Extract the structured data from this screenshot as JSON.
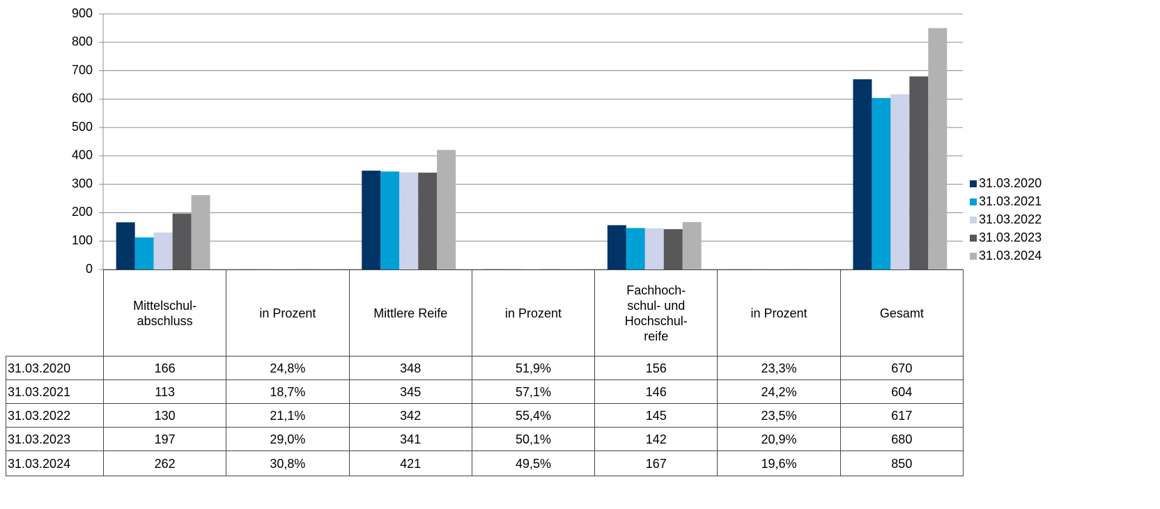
{
  "chart_data": {
    "type": "bar",
    "categories": [
      "Mittelschul-\nabschluss",
      "in Prozent",
      "Mittlere Reife",
      "in Prozent",
      "Fachhoch-\nschul- und\nHochschul-\nreife",
      "in Prozent",
      "Gesamt"
    ],
    "series": [
      {
        "name": "31.03.2020",
        "color": "#003366",
        "values": [
          166,
          0.248,
          348,
          0.519,
          156,
          0.233,
          670
        ],
        "value_labels": [
          null,
          "24,8%",
          null,
          "51,9%",
          null,
          "23,3%",
          null
        ]
      },
      {
        "name": "31.03.2021",
        "color": "#009fd6",
        "values": [
          113,
          0.187,
          345,
          0.571,
          146,
          0.242,
          604
        ],
        "value_labels": [
          null,
          "18,7%",
          null,
          "57,1%",
          null,
          "24,2%",
          null
        ]
      },
      {
        "name": "31.03.2022",
        "color": "#cdd3ea",
        "values": [
          130,
          0.211,
          342,
          0.554,
          145,
          0.235,
          617
        ],
        "value_labels": [
          null,
          "21,1%",
          null,
          "55,4%",
          null,
          "23,5%",
          null
        ]
      },
      {
        "name": "31.03.2023",
        "color": "#58585a",
        "values": [
          197,
          0.29,
          341,
          0.501,
          142,
          0.209,
          680
        ],
        "value_labels": [
          null,
          "29,0%",
          null,
          "50,1%",
          null,
          "20,9%",
          null
        ]
      },
      {
        "name": "31.03.2024",
        "color": "#b2b2b2",
        "values": [
          262,
          0.308,
          421,
          0.495,
          167,
          0.196,
          850
        ],
        "value_labels": [
          null,
          "30,8%",
          null,
          "49,5%",
          null,
          "19,6%",
          null
        ]
      }
    ],
    "ylim": [
      0,
      900
    ],
    "yticks": [
      0,
      100,
      200,
      300,
      400,
      500,
      600,
      700,
      800,
      900
    ],
    "grid": true,
    "legend": "right"
  }
}
